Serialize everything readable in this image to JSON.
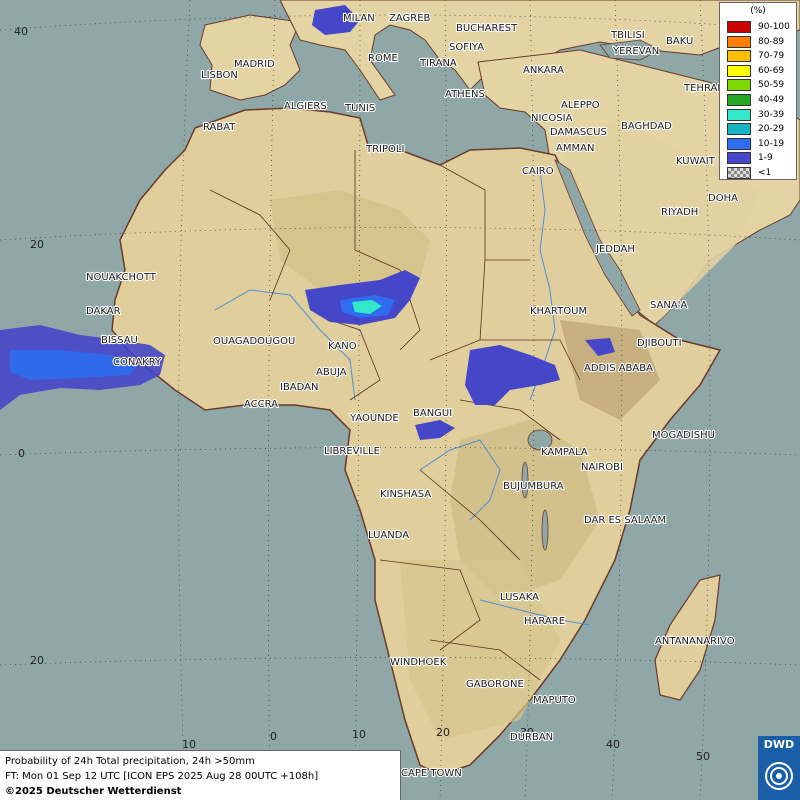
{
  "legend": {
    "title": "(%)",
    "items": [
      {
        "label": "90-100",
        "color": "#cc0000"
      },
      {
        "label": "80-89",
        "color": "#ff7f00"
      },
      {
        "label": "70-79",
        "color": "#ffbf00"
      },
      {
        "label": "60-69",
        "color": "#ffff00"
      },
      {
        "label": "50-59",
        "color": "#7fd800"
      },
      {
        "label": "40-49",
        "color": "#22a822"
      },
      {
        "label": "30-39",
        "color": "#33e8c8"
      },
      {
        "label": "20-29",
        "color": "#19b4c4"
      },
      {
        "label": "10-19",
        "color": "#2f6cf0"
      },
      {
        "label": "1-9",
        "color": "#4646c8"
      },
      {
        "label": "<1",
        "color": "checker"
      }
    ]
  },
  "grid": {
    "lat_labels": [
      "40",
      "20",
      "0",
      "20"
    ],
    "lon_labels": [
      "10",
      "0",
      "10",
      "20",
      "30",
      "40",
      "50"
    ]
  },
  "cities": [
    "MILAN",
    "ZAGREB",
    "BUCHAREST",
    "TBILISI",
    "BAKU",
    "YEREVAN",
    "TEHRAN",
    "MADRID",
    "LISBON",
    "ROME",
    "SOFIYA",
    "TIRANA",
    "ANKARA",
    "ATHENS",
    "ALGIERS",
    "TUNIS",
    "RABAT",
    "NICOSIA",
    "ALEPPO",
    "BAGHDAD",
    "DAMASCUS",
    "AMMAN",
    "TRIPOLI",
    "CAIRO",
    "KUWAIT",
    "DOHA",
    "RIYADH",
    "NOUAKCHOTT",
    "DAKAR",
    "BISSAU",
    "CONAKRY",
    "OUAGADOUGOU",
    "KANO",
    "ABUJA",
    "IBADAN",
    "ACCRA",
    "JEDDAH",
    "SANA'A",
    "KHARTOUM",
    "DJIBOUTI",
    "ADDIS ABABA",
    "YAOUNDE",
    "BANGUI",
    "LIBREVILLE",
    "MOGADISHU",
    "KAMPALA",
    "NAIROBI",
    "KINSHASA",
    "BUJUMBURA",
    "DAR ES SALAAM",
    "LUANDA",
    "LUSAKA",
    "HARARE",
    "ANTANANARIVO",
    "WINDHOEK",
    "GABORONE",
    "MAPUTO",
    "DURBAN",
    "CAPE TOWN"
  ],
  "info": {
    "line1": "Probability of 24h Total precipitation, 24h >50mm",
    "line2": "FT: Mon 01 Sep 12 UTC [ICON EPS 2025 Aug 28 00UTC +108h]",
    "line3": "©2025 Deutscher Wetterdienst"
  },
  "logo": "DWD"
}
